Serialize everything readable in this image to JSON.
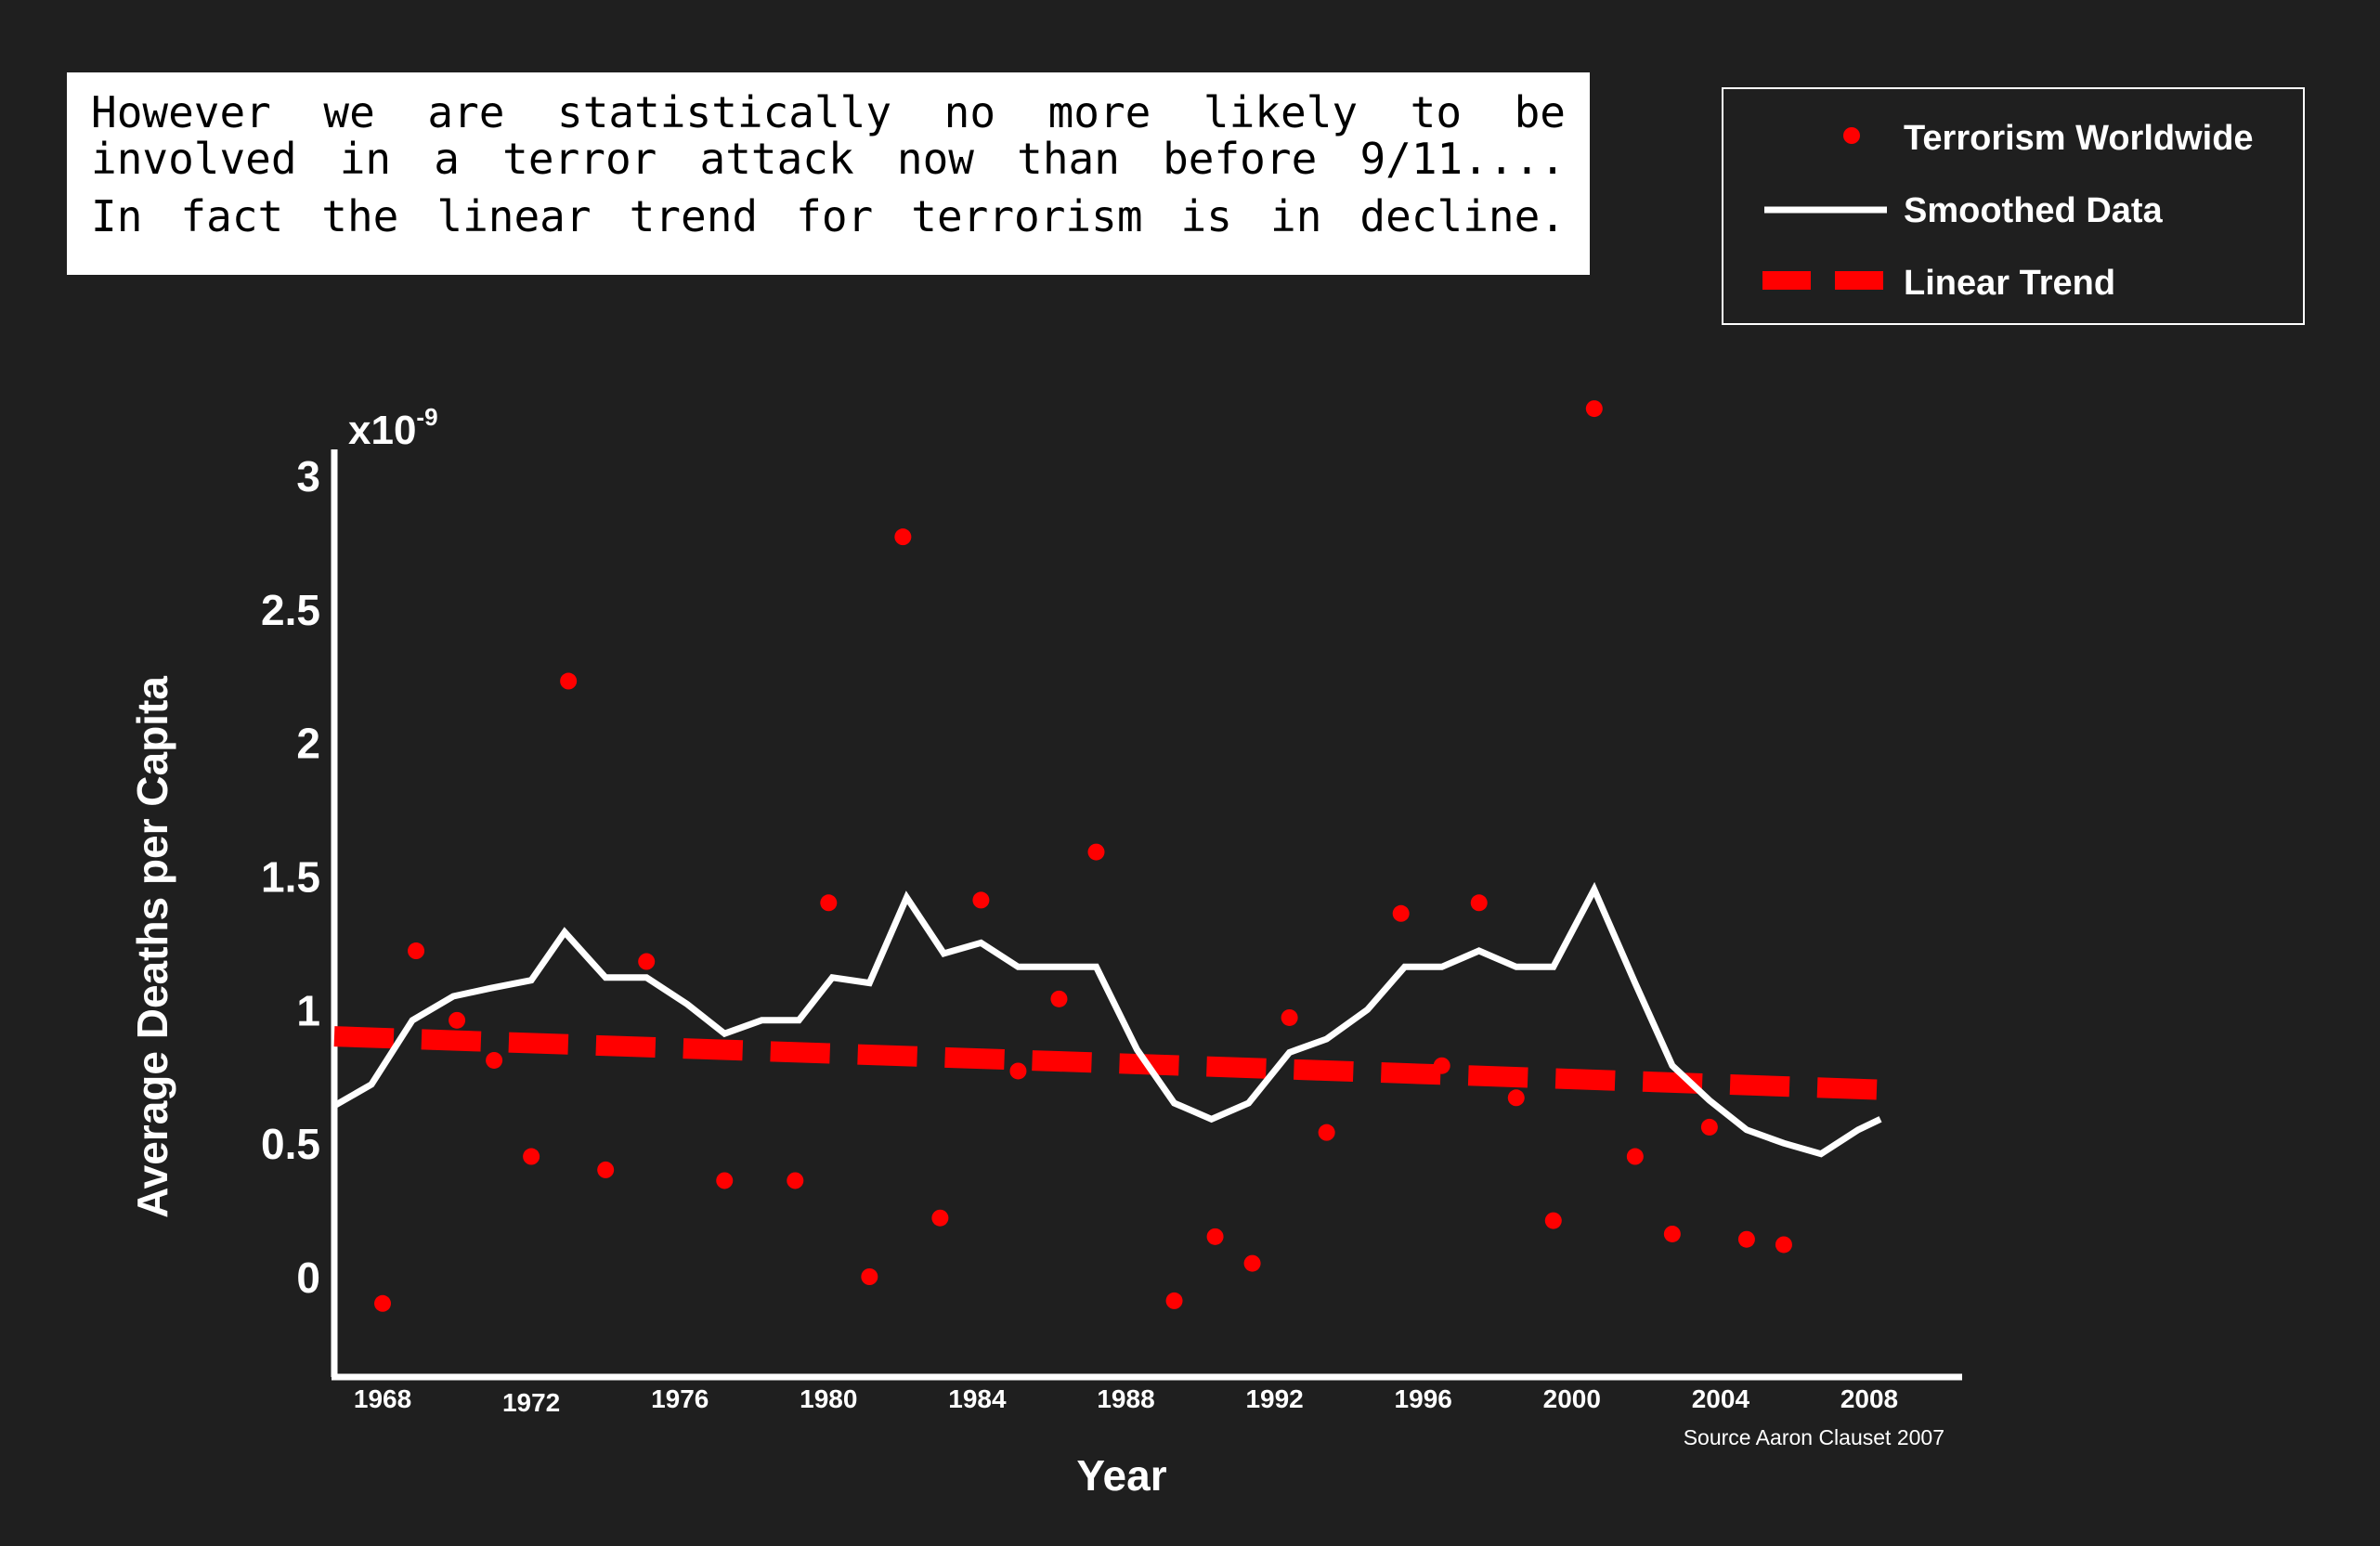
{
  "banner": {
    "line1": "However we are statistically no more likely to be",
    "line2": "involved in a terror attack now than before 9/11....",
    "line3": "In fact the linear trend for terrorism is in decline."
  },
  "legend": {
    "items": [
      {
        "label": "Terrorism Worldwide",
        "marker": "dot",
        "color": "#ff0000"
      },
      {
        "label": "Smoothed Data",
        "marker": "line",
        "color": "#ffffff"
      },
      {
        "label": "Linear Trend",
        "marker": "dashed-line",
        "color": "#ff0000"
      }
    ]
  },
  "source": "Source Aaron Clauset 2007",
  "chart_data": {
    "type": "scatter",
    "title": "",
    "xlabel": "Year",
    "ylabel": "Average Deaths per Capita",
    "y_multiplier": "x10",
    "y_multiplier_exp": "-9",
    "xlim": [
      1966.7,
      2008.5
    ],
    "ylim": [
      -0.35,
      3.1
    ],
    "x_ticks": [
      1968,
      1972,
      1976,
      1980,
      1984,
      1988,
      1992,
      1996,
      2000,
      2004,
      2008
    ],
    "y_ticks": [
      0,
      0.5,
      1,
      1.5,
      2,
      2.5,
      3
    ],
    "y_tick_labels": [
      "0",
      "0.5",
      "1",
      "1.5",
      "2",
      "2.5",
      "3"
    ],
    "grid": false,
    "legend_position": "top-right",
    "background": "#1f1f1f",
    "series": [
      {
        "name": "Terrorism Worldwide",
        "kind": "scatter",
        "color": "#ff0000",
        "points": [
          [
            1968,
            -0.1
          ],
          [
            1968.9,
            1.22
          ],
          [
            1970,
            0.96
          ],
          [
            1971,
            0.81
          ],
          [
            1972,
            0.45
          ],
          [
            1973,
            2.23
          ],
          [
            1974,
            0.4
          ],
          [
            1975.1,
            1.18
          ],
          [
            1977.2,
            0.36
          ],
          [
            1979.1,
            0.36
          ],
          [
            1980,
            1.4
          ],
          [
            1981.1,
            0.0
          ],
          [
            1982,
            2.77
          ],
          [
            1983,
            0.22
          ],
          [
            1984.1,
            1.41
          ],
          [
            1985.1,
            0.77
          ],
          [
            1986.2,
            1.04
          ],
          [
            1987.2,
            1.59
          ],
          [
            1989.3,
            -0.09
          ],
          [
            1990.4,
            0.15
          ],
          [
            1991.4,
            0.05
          ],
          [
            1992.4,
            0.97
          ],
          [
            1993.4,
            0.54
          ],
          [
            1995.4,
            1.36
          ],
          [
            1996.5,
            0.79
          ],
          [
            1997.5,
            1.4
          ],
          [
            1998.5,
            0.67
          ],
          [
            1999.5,
            0.21
          ],
          [
            2000.6,
            3.25
          ],
          [
            2001.7,
            0.45
          ],
          [
            2002.7,
            0.16
          ],
          [
            2003.7,
            0.56
          ],
          [
            2004.7,
            0.14
          ],
          [
            2005.7,
            0.12
          ]
        ]
      },
      {
        "name": "Smoothed Data",
        "kind": "line",
        "color": "#ffffff",
        "points": [
          [
            1966.7,
            0.64
          ],
          [
            1967.7,
            0.72
          ],
          [
            1968.8,
            0.96
          ],
          [
            1969.9,
            1.05
          ],
          [
            1970.9,
            1.08
          ],
          [
            1972,
            1.11
          ],
          [
            1972.9,
            1.29
          ],
          [
            1974,
            1.12
          ],
          [
            1975.1,
            1.12
          ],
          [
            1976.2,
            1.02
          ],
          [
            1977.2,
            0.91
          ],
          [
            1978.2,
            0.96
          ],
          [
            1979.2,
            0.96
          ],
          [
            1980.1,
            1.12
          ],
          [
            1981.1,
            1.1
          ],
          [
            1982.1,
            1.42
          ],
          [
            1983.1,
            1.21
          ],
          [
            1984.1,
            1.25
          ],
          [
            1985.1,
            1.16
          ],
          [
            1986.1,
            1.16
          ],
          [
            1987.2,
            1.16
          ],
          [
            1988.3,
            0.85
          ],
          [
            1989.3,
            0.65
          ],
          [
            1990.3,
            0.59
          ],
          [
            1991.3,
            0.65
          ],
          [
            1992.4,
            0.84
          ],
          [
            1993.4,
            0.89
          ],
          [
            1994.5,
            1.0
          ],
          [
            1995.5,
            1.16
          ],
          [
            1996.5,
            1.16
          ],
          [
            1997.5,
            1.22
          ],
          [
            1998.5,
            1.16
          ],
          [
            1999.5,
            1.16
          ],
          [
            2000.6,
            1.45
          ],
          [
            2001.7,
            1.1
          ],
          [
            2002.7,
            0.79
          ],
          [
            2003.7,
            0.66
          ],
          [
            2004.7,
            0.55
          ],
          [
            2005.7,
            0.5
          ],
          [
            2006.7,
            0.46
          ],
          [
            2007.7,
            0.55
          ],
          [
            2008.3,
            0.59
          ]
        ]
      },
      {
        "name": "Linear Trend",
        "kind": "dashed-line",
        "color": "#ff0000",
        "points": [
          [
            1966.7,
            0.9
          ],
          [
            2008.3,
            0.7
          ]
        ]
      }
    ]
  }
}
